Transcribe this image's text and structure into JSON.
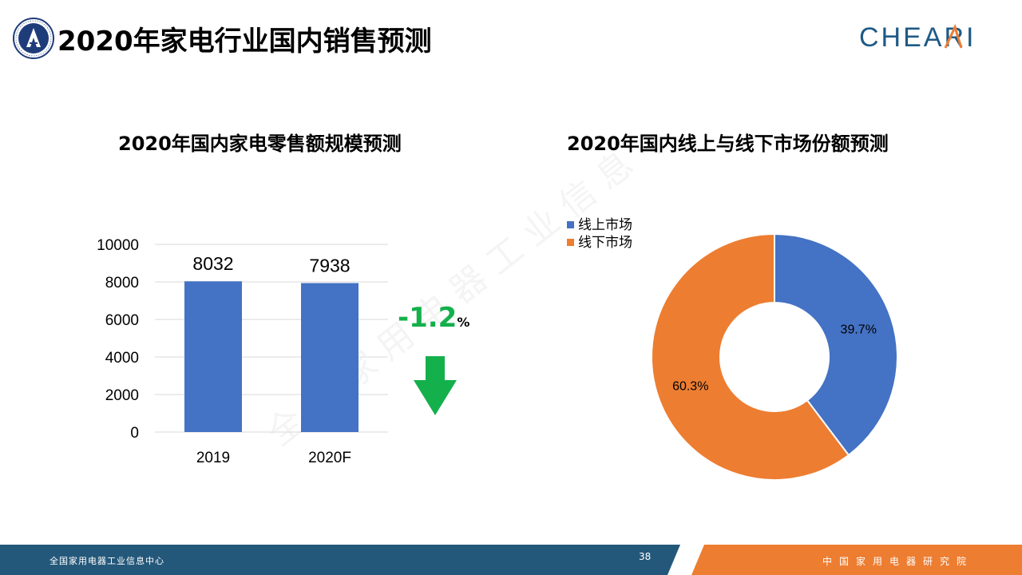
{
  "header": {
    "title": "2020年家电行业国内销售预测",
    "left_logo_icon": "association-seal-icon",
    "brand_logo": "CHEARI"
  },
  "colors": {
    "bar": "#4472c4",
    "online": "#4472c4",
    "offline": "#ed7d31",
    "change": "#14b04c",
    "footer_blue": "#24587a",
    "footer_orange": "#ed7d31"
  },
  "change_indicator": {
    "value": "-1.2",
    "unit": "%",
    "icon": "down-arrow-icon"
  },
  "footer": {
    "left_text": "全国家用电器工业信息中心",
    "page_number": "38",
    "right_text": "中国家用电器研究院"
  },
  "watermark_text": "全国家用电器工业信息中心",
  "chart_data": [
    {
      "type": "bar",
      "title": "2020年国内家电零售额规模预测",
      "categories": [
        "2019",
        "2020F"
      ],
      "values": [
        8032,
        7938
      ],
      "data_labels": [
        "8032",
        "7938"
      ],
      "ylim": [
        0,
        10000
      ],
      "yticks": [
        "0",
        "2000",
        "4000",
        "6000",
        "8000",
        "10000"
      ],
      "grid": true,
      "xlabel": "",
      "ylabel": ""
    },
    {
      "type": "pie",
      "donut": true,
      "title": "2020年国内线上与线下市场份额预测",
      "legend_position": "top-left",
      "series": [
        {
          "name": "线上市场",
          "value": 39.7,
          "label": "39.7%"
        },
        {
          "name": "线下市场",
          "value": 60.3,
          "label": "60.3%"
        }
      ]
    }
  ]
}
